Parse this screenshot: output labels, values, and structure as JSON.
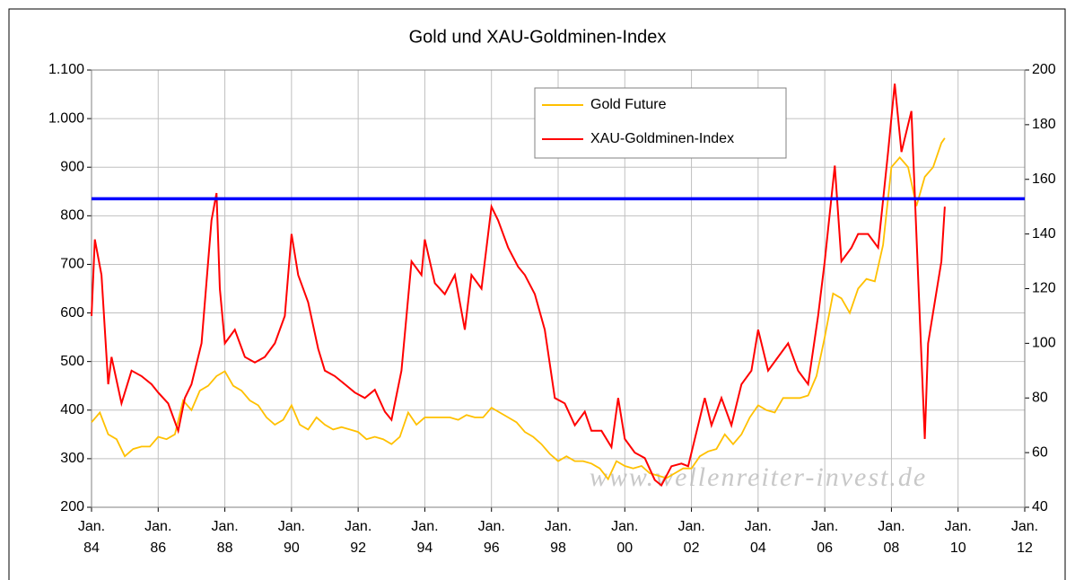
{
  "chart_data": {
    "type": "line",
    "title": "Gold und XAU-Goldminen-Index",
    "watermark": "www.wellenreiter-invest.de",
    "xlim": [
      1984,
      2012
    ],
    "xticks": [
      {
        "value": 1984,
        "label": "Jan.\n84"
      },
      {
        "value": 1986,
        "label": "Jan.\n86"
      },
      {
        "value": 1988,
        "label": "Jan.\n88"
      },
      {
        "value": 1990,
        "label": "Jan.\n90"
      },
      {
        "value": 1992,
        "label": "Jan.\n92"
      },
      {
        "value": 1994,
        "label": "Jan.\n94"
      },
      {
        "value": 1996,
        "label": "Jan.\n96"
      },
      {
        "value": 1998,
        "label": "Jan.\n98"
      },
      {
        "value": 2000,
        "label": "Jan.\n00"
      },
      {
        "value": 2002,
        "label": "Jan.\n02"
      },
      {
        "value": 2004,
        "label": "Jan.\n04"
      },
      {
        "value": 2006,
        "label": "Jan.\n06"
      },
      {
        "value": 2008,
        "label": "Jan.\n08"
      },
      {
        "value": 2010,
        "label": "Jan.\n10"
      },
      {
        "value": 2012,
        "label": "Jan.\n12"
      }
    ],
    "ylim": [
      200,
      1100
    ],
    "yticks": [
      200,
      300,
      400,
      500,
      600,
      700,
      800,
      900,
      {
        "value": 1000,
        "label": "1.000"
      },
      {
        "value": 1100,
        "label": "1.100"
      }
    ],
    "y2lim": [
      40,
      200
    ],
    "y2ticks": [
      40,
      60,
      80,
      100,
      120,
      140,
      160,
      180,
      200
    ],
    "grid": true,
    "reference_line": {
      "value": 835,
      "color": "#0000ff"
    },
    "series": [
      {
        "name": "Gold Future",
        "color": "#ffc000",
        "axis": "y",
        "x": [
          1984,
          1984.25,
          1984.5,
          1984.75,
          1985,
          1985.25,
          1985.5,
          1985.75,
          1986,
          1986.25,
          1986.5,
          1986.75,
          1987,
          1987.25,
          1987.5,
          1987.75,
          1988,
          1988.25,
          1988.5,
          1988.75,
          1989,
          1989.25,
          1989.5,
          1989.75,
          1990,
          1990.25,
          1990.5,
          1990.75,
          1991,
          1991.25,
          1991.5,
          1991.75,
          1992,
          1992.25,
          1992.5,
          1992.75,
          1993,
          1993.25,
          1993.5,
          1993.75,
          1994,
          1994.25,
          1994.5,
          1994.75,
          1995,
          1995.25,
          1995.5,
          1995.75,
          1996,
          1996.25,
          1996.5,
          1996.75,
          1997,
          1997.25,
          1997.5,
          1997.75,
          1998,
          1998.25,
          1998.5,
          1998.75,
          1999,
          1999.25,
          1999.5,
          1999.75,
          2000,
          2000.25,
          2000.5,
          2000.75,
          2001,
          2001.25,
          2001.5,
          2001.75,
          2002,
          2002.25,
          2002.5,
          2002.75,
          2003,
          2003.25,
          2003.5,
          2003.75,
          2004,
          2004.25,
          2004.5,
          2004.75,
          2005,
          2005.25,
          2005.5,
          2005.75,
          2006,
          2006.25,
          2006.5,
          2006.75,
          2007,
          2007.25,
          2007.5,
          2007.75,
          2008,
          2008.25,
          2008.5,
          2008.75,
          2009,
          2009.25,
          2009.5,
          2009.6
        ],
        "values": [
          375,
          395,
          350,
          340,
          305,
          320,
          325,
          325,
          345,
          340,
          350,
          420,
          400,
          440,
          450,
          470,
          480,
          450,
          440,
          420,
          410,
          385,
          370,
          380,
          410,
          370,
          360,
          385,
          370,
          360,
          365,
          360,
          355,
          340,
          345,
          340,
          330,
          345,
          395,
          370,
          385,
          385,
          385,
          385,
          380,
          390,
          385,
          385,
          405,
          395,
          385,
          375,
          355,
          345,
          330,
          310,
          295,
          305,
          295,
          295,
          290,
          280,
          258,
          295,
          285,
          280,
          285,
          270,
          265,
          260,
          270,
          280,
          280,
          305,
          315,
          320,
          350,
          330,
          350,
          385,
          410,
          400,
          395,
          425,
          425,
          425,
          430,
          470,
          550,
          640,
          630,
          600,
          650,
          670,
          665,
          740,
          900,
          920,
          900,
          820,
          880,
          900,
          950,
          960
        ]
      },
      {
        "name": "XAU-Goldminen-Index",
        "color": "#ff0000",
        "axis": "y2",
        "x": [
          1984,
          1984.1,
          1984.3,
          1984.5,
          1984.6,
          1984.9,
          1985.2,
          1985.5,
          1985.8,
          1986,
          1986.3,
          1986.6,
          1986.8,
          1987,
          1987.3,
          1987.6,
          1987.75,
          1987.85,
          1988,
          1988.3,
          1988.6,
          1988.9,
          1989.2,
          1989.5,
          1989.8,
          1990,
          1990.2,
          1990.5,
          1990.8,
          1991,
          1991.3,
          1991.6,
          1991.9,
          1992.2,
          1992.5,
          1992.8,
          1993,
          1993.3,
          1993.6,
          1993.9,
          1994,
          1994.3,
          1994.6,
          1994.9,
          1995.2,
          1995.4,
          1995.7,
          1996,
          1996.2,
          1996.5,
          1996.8,
          1997,
          1997.3,
          1997.6,
          1997.9,
          1998.2,
          1998.5,
          1998.8,
          1999,
          1999.3,
          1999.6,
          1999.8,
          2000,
          2000.3,
          2000.6,
          2000.9,
          2001.1,
          2001.4,
          2001.7,
          2001.9,
          2002.1,
          2002.4,
          2002.6,
          2002.9,
          2003.2,
          2003.5,
          2003.8,
          2004,
          2004.3,
          2004.6,
          2004.9,
          2005.2,
          2005.5,
          2005.8,
          2006,
          2006.3,
          2006.5,
          2006.8,
          2007,
          2007.3,
          2007.6,
          2007.9,
          2008.1,
          2008.3,
          2008.6,
          2008.8,
          2009,
          2009.1,
          2009.3,
          2009.5,
          2009.6
        ],
        "values": [
          110,
          138,
          125,
          85,
          95,
          78,
          90,
          88,
          85,
          82,
          78,
          68,
          80,
          85,
          100,
          145,
          155,
          120,
          100,
          105,
          95,
          93,
          95,
          100,
          110,
          140,
          125,
          115,
          98,
          90,
          88,
          85,
          82,
          80,
          83,
          75,
          72,
          90,
          130,
          125,
          138,
          122,
          118,
          125,
          105,
          125,
          120,
          150,
          145,
          135,
          128,
          125,
          118,
          105,
          80,
          78,
          70,
          75,
          68,
          68,
          62,
          80,
          65,
          60,
          58,
          50,
          48,
          55,
          56,
          55,
          65,
          80,
          70,
          80,
          70,
          85,
          90,
          105,
          90,
          95,
          100,
          90,
          85,
          110,
          130,
          165,
          130,
          135,
          140,
          140,
          135,
          170,
          195,
          170,
          185,
          125,
          65,
          100,
          115,
          130,
          150
        ]
      }
    ]
  }
}
